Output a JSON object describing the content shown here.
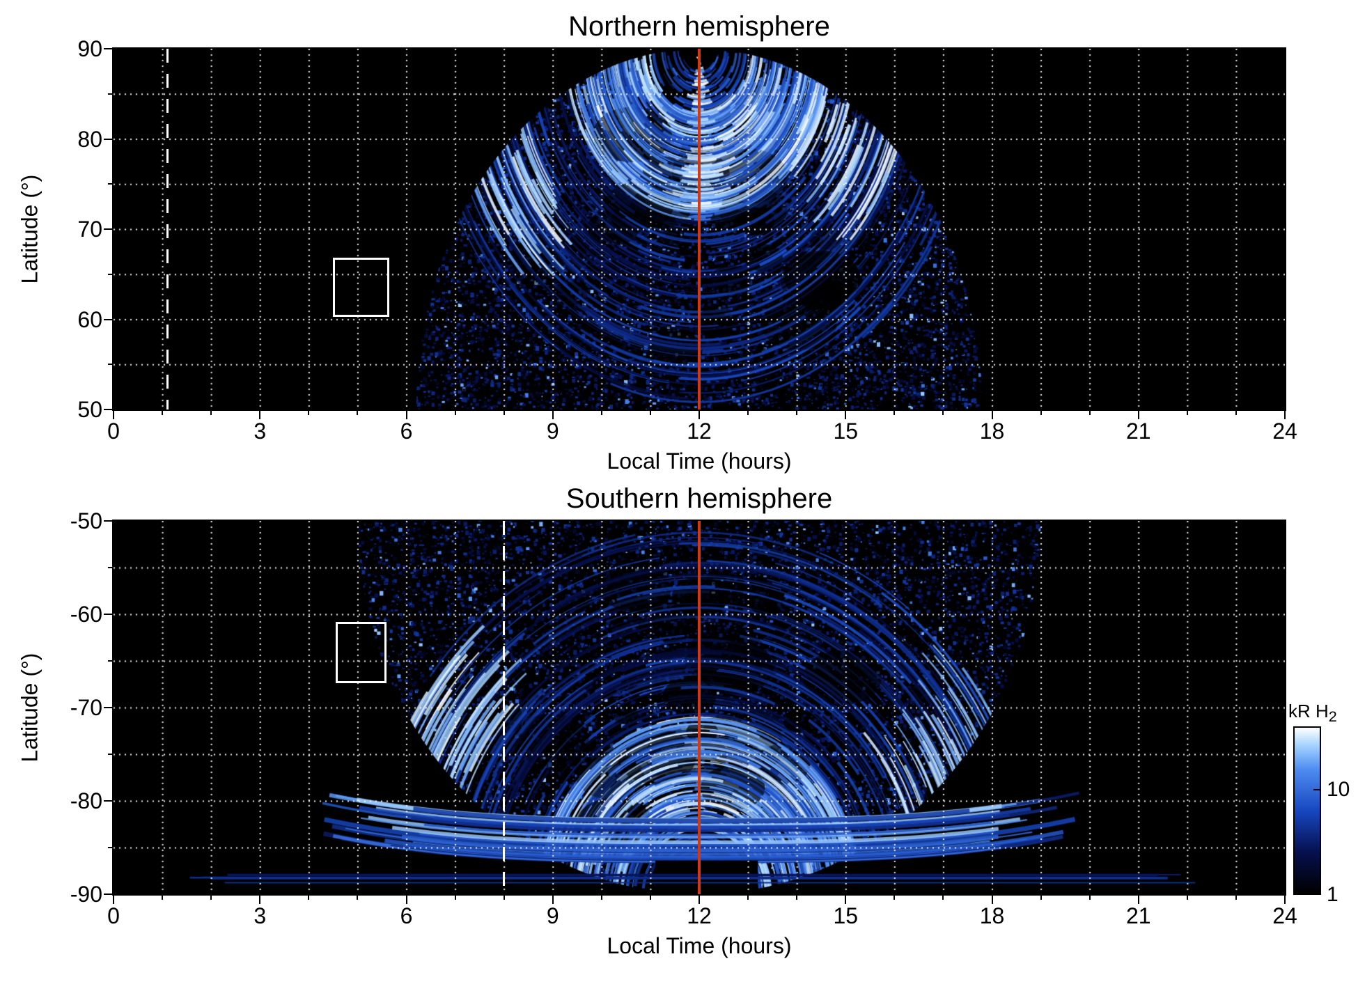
{
  "figure": {
    "background": "#ffffff",
    "axis_color": "#000000",
    "grid_color": "#ffffff",
    "noon_line_color": "#cf3a14",
    "annotation_color": "#ffffff"
  },
  "chart_data": [
    {
      "type": "heatmap",
      "hemisphere": "north",
      "title": "Northern hemisphere",
      "xlabel": "Local Time (hours)",
      "ylabel": "Latitude (°)",
      "xlim": [
        0,
        24
      ],
      "ylim": [
        50,
        90
      ],
      "xticks": [
        0,
        3,
        6,
        9,
        12,
        15,
        18,
        21,
        24
      ],
      "x_minor_step": 1,
      "yticks": [
        50,
        60,
        70,
        80,
        90
      ],
      "y_minor_step": 5,
      "grid": {
        "style": "dotted",
        "color": "#ffffff",
        "x_step_hours": 1,
        "y_step_degrees": 5
      },
      "value_label": "kR H2 emission",
      "value_range_kR": [
        1,
        40
      ],
      "data_extent": {
        "local_time": [
          6.2,
          17.9
        ],
        "latitude": [
          50,
          90
        ]
      },
      "description": "Speckled 1-10 kR H2 auroral emission fills a dayside dome from ~06:15 to ~17:55 local time; bright 10-40 kR curved swath arcs at 70-85 deg latitude flank noon; nightside is black (no data)",
      "bright_regions": [
        {
          "local_time": [
            7.4,
            9.2
          ],
          "latitude": [
            70,
            76
          ]
        },
        {
          "local_time": [
            13.2,
            16.8
          ],
          "latitude": [
            74,
            84
          ]
        },
        {
          "local_time": [
            10.6,
            13.4
          ],
          "latitude": [
            83,
            88
          ]
        },
        {
          "local_time": [
            10.2,
            14.0
          ],
          "latitude": [
            74.5,
            77.5
          ]
        }
      ],
      "annotations": {
        "noon_line_x": 12,
        "dashed_line_x": 1.1,
        "box": {
          "local_time": [
            4.5,
            5.65
          ],
          "latitude": [
            60.3,
            66.8
          ]
        }
      },
      "render": {
        "pole_at_top": true,
        "half_width_hours": 5.8,
        "seed": 11
      }
    },
    {
      "type": "heatmap",
      "hemisphere": "south",
      "title": "Southern hemisphere",
      "xlabel": "Local Time (hours)",
      "ylabel": "Latitude (°)",
      "xlim": [
        0,
        24
      ],
      "ylim": [
        -90,
        -50
      ],
      "xticks": [
        0,
        3,
        6,
        9,
        12,
        15,
        18,
        21,
        24
      ],
      "x_minor_step": 1,
      "yticks": [
        -90,
        -80,
        -70,
        -60,
        -50
      ],
      "y_minor_step": 5,
      "grid": {
        "style": "dotted",
        "color": "#ffffff",
        "x_step_hours": 1,
        "y_step_degrees": 5
      },
      "value_label": "kR H2 emission",
      "value_range_kR": [
        1,
        40
      ],
      "data_extent": {
        "local_time": [
          5.0,
          19.5
        ],
        "latitude": [
          -90,
          -50
        ]
      },
      "description": "Speckled 1-10 kR H2 emission fills a dayside dome from ~05:00 to ~19:30 local time; bright 10-40 kR arcs at -70 to -85 deg latitude; wide bright bands near -83 to -86 deg; thin emission strips near -88 deg stretch from ~01:20 to ~22:20; nightside black",
      "bright_regions": [
        {
          "local_time": [
            6.3,
            7.8
          ],
          "latitude": [
            -75,
            -69
          ]
        },
        {
          "local_time": [
            15.8,
            18.6
          ],
          "latitude": [
            -82,
            -71
          ]
        }
      ],
      "polar_strips": {
        "local_time": [
          1.3,
          22.3
        ],
        "latitude": [
          -89,
          -83
        ]
      },
      "annotations": {
        "noon_line_x": 12,
        "dashed_line_x": 8.0,
        "box": {
          "local_time": [
            4.55,
            5.6
          ],
          "latitude": [
            -67.4,
            -60.8
          ]
        }
      },
      "render": {
        "pole_at_top": false,
        "half_width_hours": 7.0,
        "seed": 29
      }
    }
  ],
  "colorbar": {
    "label": "kR H",
    "label_sub": "2",
    "scale": "log",
    "range": [
      1,
      40
    ],
    "ticks": [
      {
        "value": 10,
        "label": "10"
      },
      {
        "value": 1,
        "label": "1"
      }
    ],
    "stops": [
      "#000000",
      "#06104f",
      "#1747c0",
      "#4f8df0",
      "#a9d6ff",
      "#ffffff"
    ]
  }
}
